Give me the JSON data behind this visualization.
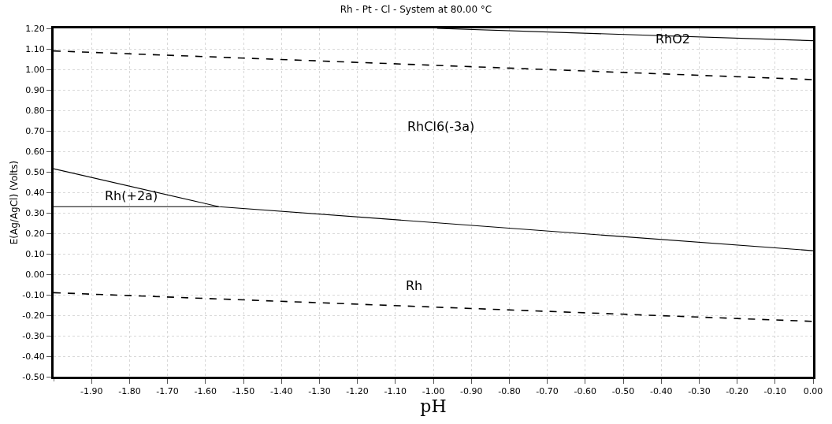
{
  "chart_data": {
    "type": "line",
    "title": "Rh - Pt - Cl - System at 80.00 °C",
    "xlabel": "pH",
    "ylabel": "E(Ag/AgCl) (Volts)",
    "xlim": [
      -2.0,
      0.0
    ],
    "ylim": [
      -0.5,
      1.2
    ],
    "xticks": [
      {
        "value": -1.9,
        "label": "-1.90"
      },
      {
        "value": -1.8,
        "label": "-1.80"
      },
      {
        "value": -1.7,
        "label": "-1.70"
      },
      {
        "value": -1.6,
        "label": "-1.60"
      },
      {
        "value": -1.5,
        "label": "-1.50"
      },
      {
        "value": -1.4,
        "label": "-1.40"
      },
      {
        "value": -1.3,
        "label": "-1.30"
      },
      {
        "value": -1.2,
        "label": "-1.20"
      },
      {
        "value": -1.1,
        "label": "-1.10"
      },
      {
        "value": -1.0,
        "label": "-1.00"
      },
      {
        "value": -0.9,
        "label": "-0.90"
      },
      {
        "value": -0.8,
        "label": "-0.80"
      },
      {
        "value": -0.7,
        "label": "-0.70"
      },
      {
        "value": -0.6,
        "label": "-0.60"
      },
      {
        "value": -0.5,
        "label": "-0.50"
      },
      {
        "value": -0.4,
        "label": "-0.40"
      },
      {
        "value": -0.3,
        "label": "-0.30"
      },
      {
        "value": -0.2,
        "label": "-0.20"
      },
      {
        "value": -0.1,
        "label": "-0.10"
      },
      {
        "value": 0.0,
        "label": "0.00"
      }
    ],
    "yticks": [
      {
        "value": -0.5,
        "label": "-0.50"
      },
      {
        "value": -0.4,
        "label": "-0.40"
      },
      {
        "value": -0.3,
        "label": "-0.30"
      },
      {
        "value": -0.2,
        "label": "-0.20"
      },
      {
        "value": -0.1,
        "label": "-0.10"
      },
      {
        "value": 0.0,
        "label": "0.00"
      },
      {
        "value": 0.1,
        "label": "0.10"
      },
      {
        "value": 0.2,
        "label": "0.20"
      },
      {
        "value": 0.3,
        "label": "0.30"
      },
      {
        "value": 0.4,
        "label": "0.40"
      },
      {
        "value": 0.5,
        "label": "0.50"
      },
      {
        "value": 0.6,
        "label": "0.60"
      },
      {
        "value": 0.7,
        "label": "0.70"
      },
      {
        "value": 0.8,
        "label": "0.80"
      },
      {
        "value": 0.9,
        "label": "0.90"
      },
      {
        "value": 1.0,
        "label": "1.00"
      },
      {
        "value": 1.1,
        "label": "1.10"
      },
      {
        "value": 1.2,
        "label": "1.20"
      }
    ],
    "grid": true,
    "marker": "none",
    "series": [
      {
        "color": "#000000",
        "line_style": "dashed",
        "x": [
          -2.0,
          0.0
        ],
        "values": [
          1.09,
          0.95
        ]
      },
      {
        "color": "#000000",
        "line_style": "dashed",
        "x": [
          -2.0,
          0.0
        ],
        "values": [
          -0.09,
          -0.23
        ]
      },
      {
        "color": "#000000",
        "line_style": "solid",
        "x": [
          -2.0,
          -1.565,
          0.0
        ],
        "values": [
          0.515,
          0.33,
          0.115
        ]
      },
      {
        "color": "#000000",
        "line_style": "solid",
        "x": [
          -2.0,
          -1.565
        ],
        "values": [
          0.33,
          0.33
        ]
      },
      {
        "color": "#000000",
        "line_style": "solid",
        "x": [
          -0.99,
          0.0
        ],
        "values": [
          1.2,
          1.14
        ]
      }
    ],
    "annotations": [
      "RhCl6(-3a)",
      "Rh(+2a)",
      "Rh",
      "RhO2"
    ]
  }
}
